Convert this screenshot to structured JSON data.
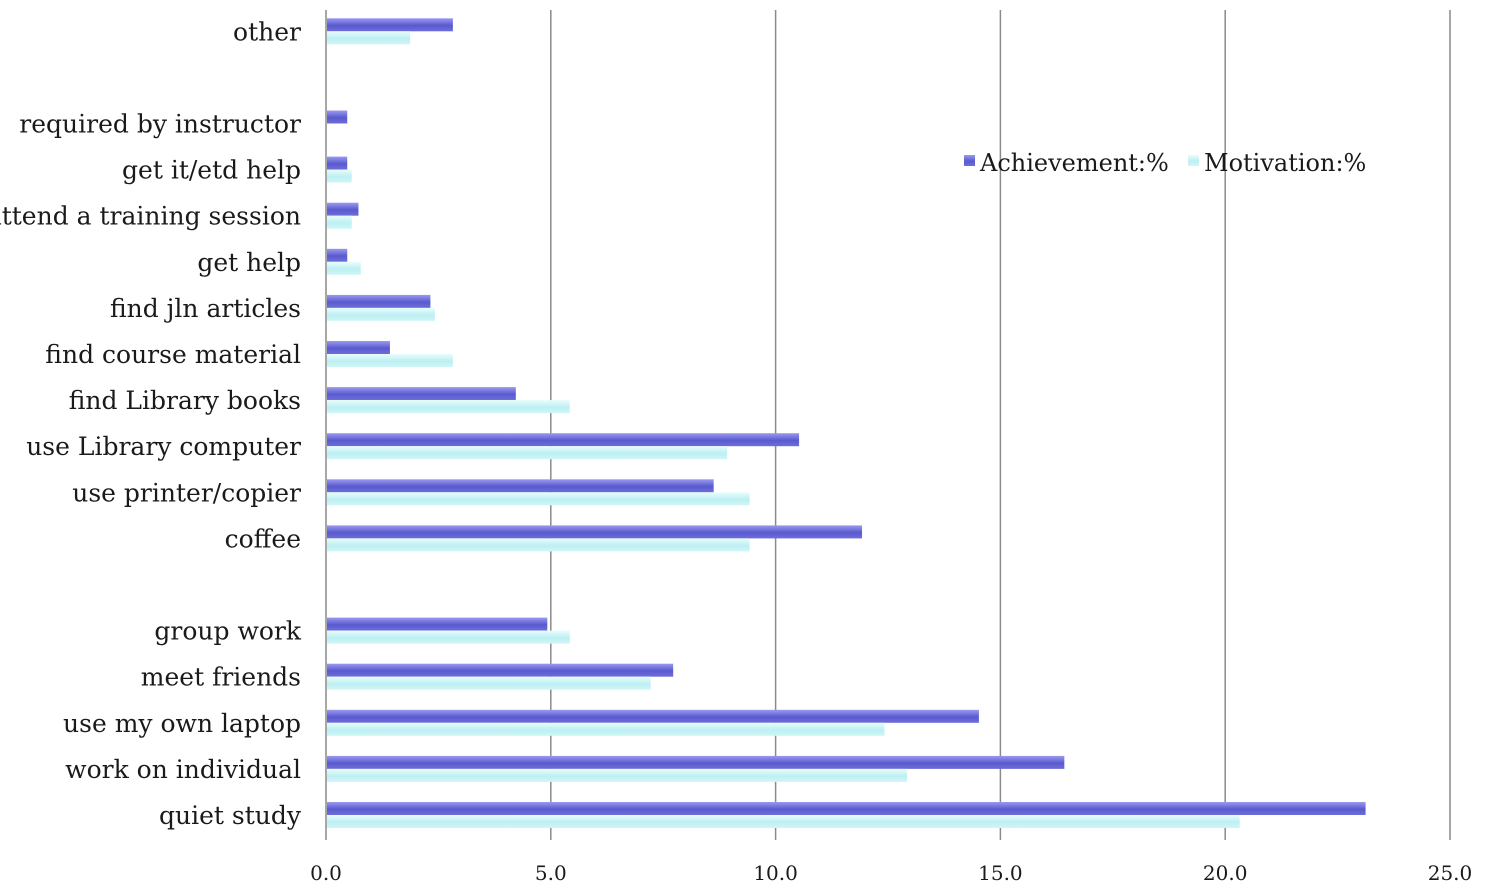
{
  "chart_data": {
    "type": "bar",
    "orientation": "horizontal",
    "title": "",
    "xlabel": "",
    "ylabel": "",
    "categories": [
      "quiet study",
      "work on individual",
      "use my own laptop",
      "meet friends",
      "group work",
      "",
      "coffee",
      "use printer/copier",
      "use Library computer",
      "find Library books",
      "find course material",
      "find jln articles",
      "get help",
      "attend a training session",
      "get it/etd help",
      "required by instructor",
      "",
      "other"
    ],
    "series": [
      {
        "name": "Achievement:%",
        "color": "#6b6bd6",
        "values": [
          23.1,
          16.4,
          14.5,
          7.7,
          4.9,
          null,
          11.9,
          8.6,
          10.5,
          4.2,
          1.4,
          2.3,
          0.45,
          0.7,
          0.45,
          0.45,
          null,
          2.8
        ]
      },
      {
        "name": "Motivation:%",
        "color": "#c4f2f4",
        "values": [
          20.3,
          12.9,
          12.4,
          7.2,
          5.4,
          null,
          9.4,
          9.4,
          8.9,
          5.4,
          2.8,
          2.4,
          0.75,
          0.55,
          0.55,
          null,
          null,
          1.85
        ]
      }
    ],
    "xlim": [
      0,
      25
    ],
    "xticks": [
      "0.0",
      "5.0",
      "10.0",
      "15.0",
      "20.0",
      "25.0"
    ],
    "xtick_values": [
      0,
      5,
      10,
      15,
      20,
      25
    ],
    "grid": "vertical",
    "legend_position": "top-right"
  }
}
